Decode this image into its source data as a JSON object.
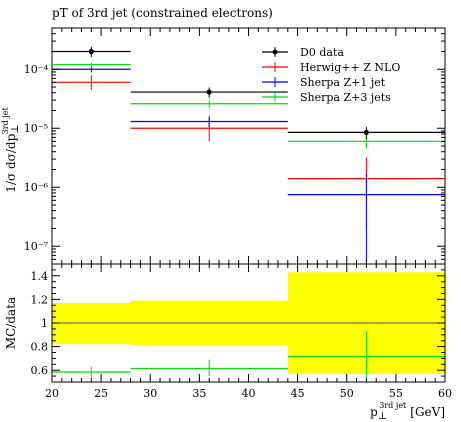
{
  "chart_data": [
    {
      "type": "line",
      "title": "pT of 3rd jet (constrained electrons)",
      "xlabel": "p⊥3rd jet [GeV]",
      "xlabel_main": "p",
      "xlabel_sub": "⊥",
      "xlabel_sup": "3rd jet",
      "xlabel_unit": "[GeV]",
      "ylabel": "1/σ dσ/dp⊥3rd jet",
      "ylabel_main": "1/σ dσ/dp",
      "ylabel_sub": "⊥",
      "ylabel_sup": "3rd jet",
      "xlim": [
        20,
        60
      ],
      "ylim": [
        5e-08,
        0.0005
      ],
      "yscale": "log",
      "bins": [
        [
          20,
          28
        ],
        [
          28,
          44
        ],
        [
          44,
          60
        ]
      ],
      "ytick_labels": [
        "10⁻⁷",
        "10⁻⁶",
        "10⁻⁵",
        "10⁻⁴"
      ],
      "ytick_values": [
        1e-07,
        1e-06,
        1e-05,
        0.0001
      ],
      "legend_position": "top-right",
      "series": [
        {
          "name": "D0 data",
          "color": "#000000",
          "style": "points",
          "x": [
            24,
            36,
            52
          ],
          "values": [
            0.0002,
            4.1e-05,
            8.5e-06
          ],
          "err_lo": [
            0.00016,
            3.3e-05,
            6.5e-06
          ],
          "err_hi": [
            0.00024,
            4.9e-05,
            1.05e-05
          ]
        },
        {
          "name": "Herwig++ Z NLO",
          "color": "#ff0000",
          "style": "hist",
          "values": [
            6e-05,
            1e-05,
            1.4e-06
          ],
          "err_lo": [
            4.5e-05,
            6e-06,
            2e-07
          ],
          "err_hi": [
            8e-05,
            1.5e-05,
            3.2e-06
          ]
        },
        {
          "name": "Sherpa Z+1 jet",
          "color": "#0000ff",
          "style": "hist",
          "values": [
            0.0001,
            1.3e-05,
            7.5e-07
          ],
          "err_lo": [
            8.8e-05,
            1.05e-05,
            5e-08
          ],
          "err_hi": [
            0.000112,
            1.6e-05,
            1.7e-06
          ]
        },
        {
          "name": "Sherpa Z+3 jets",
          "color": "#00dd00",
          "style": "hist",
          "values": [
            0.00012,
            2.6e-05,
            6e-06
          ],
          "err_lo": [
            0.00011,
            2.2e-05,
            4.5e-06
          ],
          "err_hi": [
            0.00013,
            3e-05,
            8e-06
          ]
        }
      ]
    },
    {
      "type": "line",
      "title": "",
      "ylabel": "MC/data",
      "xlabel": "p⊥3rd jet [GeV]",
      "xlim": [
        20,
        60
      ],
      "ylim": [
        0.5,
        1.5
      ],
      "xticks": [
        20,
        25,
        30,
        35,
        40,
        45,
        50,
        55,
        60
      ],
      "yticks": [
        0.6,
        0.8,
        1.0,
        1.2,
        1.4
      ],
      "ytick_labels": [
        "0.6",
        "0.8",
        "1",
        "1.2",
        "1.4"
      ],
      "band_color": "#ffff00",
      "data_band": {
        "bins": [
          [
            20,
            28
          ],
          [
            28,
            44
          ],
          [
            44,
            60
          ]
        ],
        "lo": [
          0.82,
          0.81,
          0.57
        ],
        "hi": [
          1.17,
          1.19,
          1.43
        ]
      },
      "series": [
        {
          "name": "Sherpa Z+3 jets",
          "color": "#00dd00",
          "values": [
            0.585,
            0.615,
            0.715
          ],
          "err_lo": [
            0.54,
            0.55,
            0.53
          ],
          "err_hi": [
            0.63,
            0.69,
            0.93
          ]
        }
      ]
    }
  ]
}
